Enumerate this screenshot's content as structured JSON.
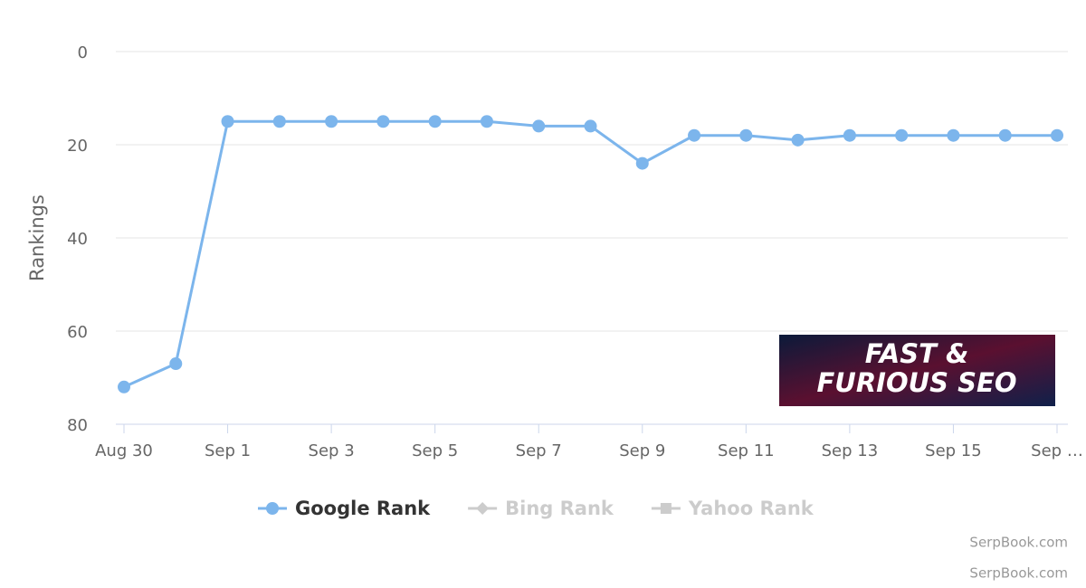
{
  "chart_data": {
    "type": "line",
    "y_axis_title": "Rankings",
    "categories": [
      "Aug 30",
      null,
      "Sep 1",
      null,
      "Sep 3",
      null,
      "Sep 5",
      null,
      "Sep 7",
      null,
      "Sep 9",
      null,
      "Sep 11",
      null,
      "Sep 13",
      null,
      "Sep 15",
      null,
      "Sep …"
    ],
    "series": [
      {
        "name": "Google Rank",
        "color": "#7cb5ec",
        "values": [
          72,
          67,
          15,
          15,
          15,
          15,
          15,
          15,
          16,
          16,
          24,
          18,
          18,
          19,
          18,
          18,
          18,
          18,
          18
        ]
      }
    ],
    "hidden_series": [
      {
        "name": "Bing Rank",
        "marker": "diamond"
      },
      {
        "name": "Yahoo Rank",
        "marker": "square"
      }
    ],
    "ylim": [
      0,
      80
    ],
    "yticks": [
      0,
      20,
      40,
      60,
      80
    ],
    "y_reversed": true,
    "grid": true,
    "legend": "bottom",
    "watermark": [
      "FAST &",
      "FURIOUS SEO"
    ],
    "credits": [
      "SerpBook.com",
      "SerpBook.com"
    ]
  }
}
